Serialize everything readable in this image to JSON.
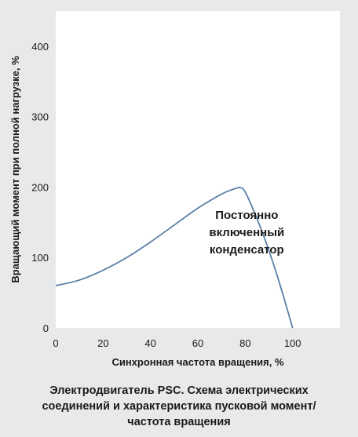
{
  "chart_data": {
    "type": "line",
    "xlabel": "Синхронная частота вращения, %",
    "ylabel": "Вращающий момент при полной нагрузке, %",
    "xlim": [
      0,
      120
    ],
    "ylim": [
      0,
      450
    ],
    "x_ticks": [
      0,
      20,
      40,
      60,
      80,
      100
    ],
    "y_ticks": [
      0,
      100,
      200,
      300,
      400
    ],
    "grid": false,
    "series": [
      {
        "x": [
          0,
          10,
          20,
          30,
          40,
          50,
          60,
          70,
          75,
          77,
          78,
          80,
          85,
          90,
          95,
          100
        ],
        "y": [
          60,
          68,
          82,
          100,
          122,
          146,
          170,
          190,
          197,
          199,
          199,
          193,
          155,
          110,
          58,
          0
        ],
        "color": "#5b7fa6"
      }
    ],
    "annotations": [
      {
        "lines": [
          "Постоянно",
          "включенный",
          "конденсатор"
        ],
        "x": 80,
        "y": 110
      }
    ]
  },
  "caption": [
    "Электродвигатель PSC. Схема электрических",
    "соединений и характеристика пусковой  момент/",
    "частота вращения"
  ]
}
